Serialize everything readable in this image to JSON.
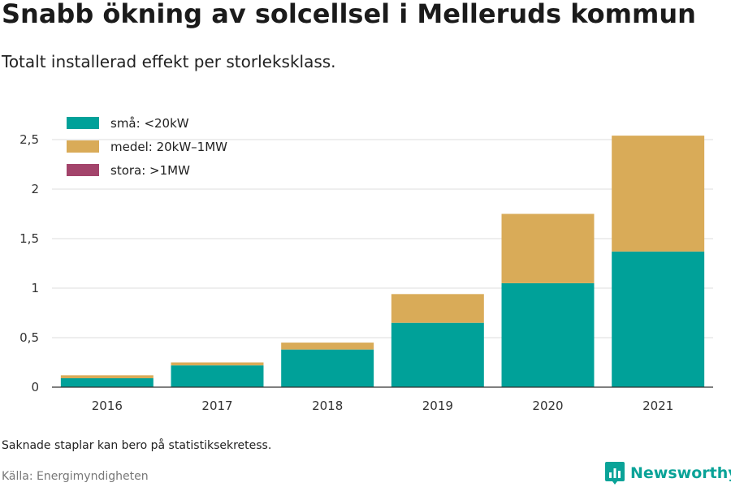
{
  "title": "Snabb ökning av solcellsel i Melleruds kommun",
  "subtitle": "Totalt installerad effekt per storleksklass.",
  "note": "Saknade staplar kan bero på statistiksekretess.",
  "source": "Källa: Energimyndigheten",
  "brand": {
    "name": "Newsworthy",
    "icon": "bar-chart-logo-icon",
    "color": "#0aa398"
  },
  "chart_data": {
    "type": "bar",
    "stacked": true,
    "categories": [
      "2016",
      "2017",
      "2018",
      "2019",
      "2020",
      "2021"
    ],
    "series": [
      {
        "name": "små: <20kW",
        "color": "#00a199",
        "values": [
          0.09,
          0.22,
          0.38,
          0.65,
          1.05,
          1.37
        ]
      },
      {
        "name": "medel: 20kW–1MW",
        "color": "#d9ab58",
        "values": [
          0.03,
          0.03,
          0.07,
          0.29,
          0.7,
          1.17
        ]
      },
      {
        "name": "stora: >1MW",
        "color": "#a3446b",
        "values": [
          0,
          0,
          0,
          0,
          0,
          0
        ]
      }
    ],
    "yticks": [
      0,
      0.5,
      1,
      1.5,
      2,
      2.5
    ],
    "ytick_labels": [
      "0",
      "0,5",
      "1",
      "1,5",
      "2",
      "2,5"
    ],
    "ylim": [
      0,
      2.8
    ],
    "grid": true,
    "legend_position": "top-left"
  }
}
